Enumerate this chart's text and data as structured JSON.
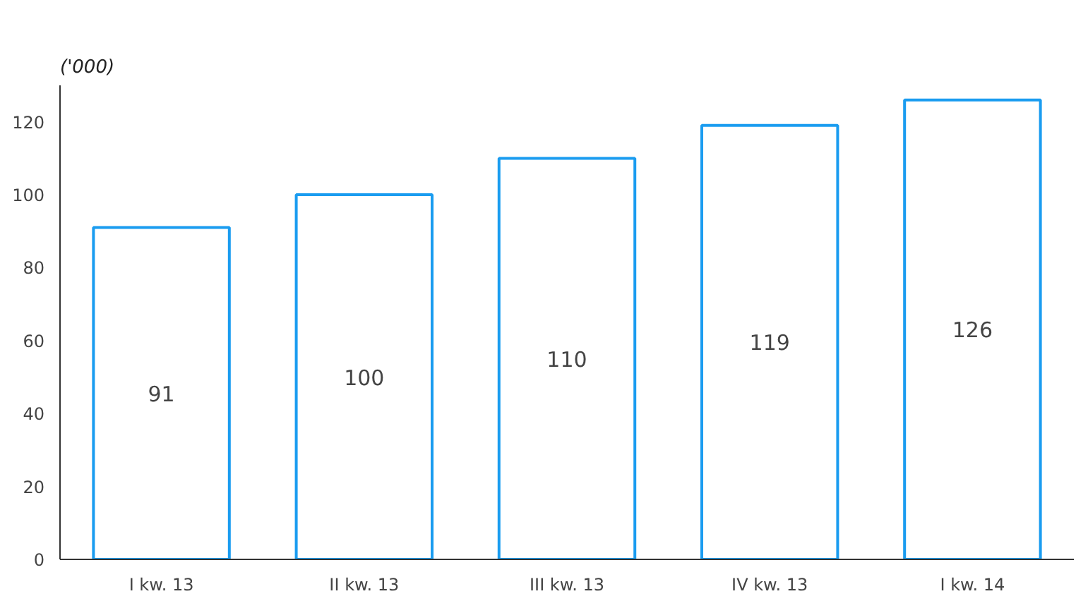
{
  "chart_data": {
    "type": "bar",
    "title": "('000)",
    "categories": [
      "I kw. 13",
      "II kw. 13",
      "III kw. 13",
      "IV kw. 13",
      "I kw. 14"
    ],
    "values": [
      91,
      100,
      110,
      119,
      126
    ],
    "color": "#1a9cf0",
    "ylim": [
      0,
      130
    ],
    "yticks": [
      0,
      20,
      40,
      60,
      80,
      100,
      120
    ],
    "data_labels": true,
    "grid": false
  }
}
